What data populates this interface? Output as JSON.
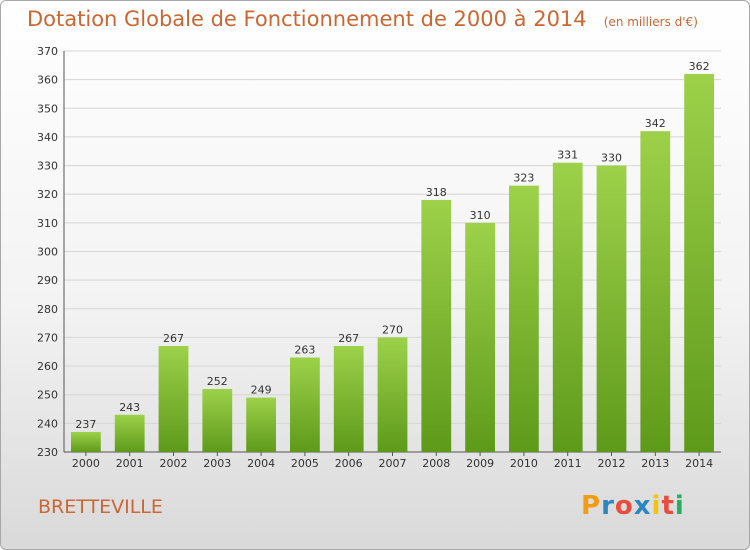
{
  "header": {
    "title": "Dotation Globale de Fonctionnement de 2000 à 2014",
    "subtitle": "(en milliers d'€)"
  },
  "footer": {
    "commune": "BRETTEVILLE",
    "logo_letters": [
      "P",
      "r",
      "o",
      "x",
      "i",
      "t",
      "i"
    ],
    "logo_colors": [
      "#f39c12",
      "#2e86c1",
      "#e74c3c",
      "#2e86c1",
      "#f1c40f",
      "#e74c3c",
      "#27ae60"
    ]
  },
  "chart_data": {
    "type": "bar",
    "title": "Dotation Globale de Fonctionnement de 2000 à 2014",
    "subtitle": "(en milliers d'€)",
    "xlabel": "",
    "ylabel": "",
    "categories": [
      "2000",
      "2001",
      "2002",
      "2003",
      "2004",
      "2005",
      "2006",
      "2007",
      "2008",
      "2009",
      "2010",
      "2011",
      "2012",
      "2013",
      "2014"
    ],
    "values": [
      237,
      243,
      267,
      252,
      249,
      263,
      267,
      270,
      318,
      310,
      323,
      331,
      330,
      342,
      362
    ],
    "ylim": [
      230,
      370
    ],
    "yticks": [
      230,
      240,
      250,
      260,
      270,
      280,
      290,
      300,
      310,
      320,
      330,
      340,
      350,
      360,
      370
    ],
    "grid": true,
    "bar_color_top": "#9dd14a",
    "bar_color_bottom": "#5e9a1a"
  }
}
